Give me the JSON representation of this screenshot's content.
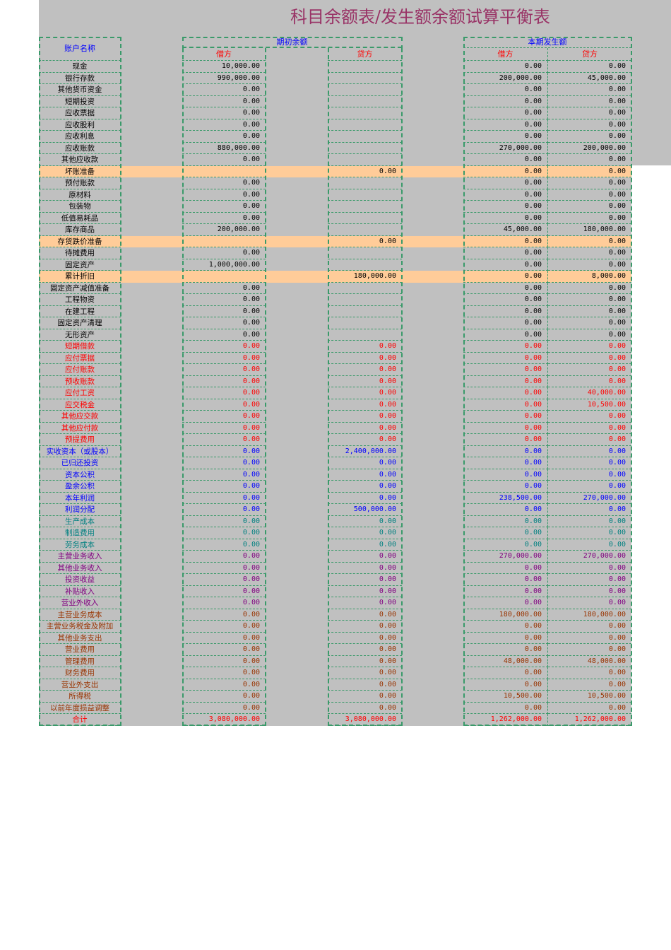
{
  "title": "科目余额表/发生额余额试算平衡表",
  "headers": {
    "account": "账户名称",
    "opening": "期初余额",
    "period": "本期发生额",
    "debit": "借方",
    "credit": "贷方"
  },
  "colors": {
    "black": "#000000",
    "red": "#ff0000",
    "blue": "#0000ff",
    "teal": "#008080",
    "purple": "#800080",
    "brown": "#993300",
    "highlight": "#ffcc99",
    "border": "#3a9a6a",
    "title": "#993366"
  },
  "rows": [
    {
      "name": "现金",
      "c": "black",
      "v": [
        "10,000.00",
        "",
        "0.00",
        "0.00"
      ]
    },
    {
      "name": "银行存款",
      "c": "black",
      "v": [
        "990,000.00",
        "",
        "200,000.00",
        "45,000.00"
      ]
    },
    {
      "name": "其他货币资金",
      "c": "black",
      "v": [
        "0.00",
        "",
        "0.00",
        "0.00"
      ]
    },
    {
      "name": "短期投资",
      "c": "black",
      "v": [
        "0.00",
        "",
        "0.00",
        "0.00"
      ]
    },
    {
      "name": "应收票据",
      "c": "black",
      "v": [
        "0.00",
        "",
        "0.00",
        "0.00"
      ]
    },
    {
      "name": "应收股利",
      "c": "black",
      "v": [
        "0.00",
        "",
        "0.00",
        "0.00"
      ]
    },
    {
      "name": "应收利息",
      "c": "black",
      "v": [
        "0.00",
        "",
        "0.00",
        "0.00"
      ]
    },
    {
      "name": "应收账款",
      "c": "black",
      "v": [
        "880,000.00",
        "",
        "270,000.00",
        "200,000.00"
      ]
    },
    {
      "name": "其他应收款",
      "c": "black",
      "v": [
        "0.00",
        "",
        "0.00",
        "0.00"
      ]
    },
    {
      "name": "坏账准备",
      "c": "black",
      "hl": true,
      "v": [
        "",
        "0.00",
        "0.00",
        "0.00"
      ]
    },
    {
      "name": "预付账款",
      "c": "black",
      "v": [
        "0.00",
        "",
        "0.00",
        "0.00"
      ]
    },
    {
      "name": "原材料",
      "c": "black",
      "v": [
        "0.00",
        "",
        "0.00",
        "0.00"
      ]
    },
    {
      "name": "包装物",
      "c": "black",
      "v": [
        "0.00",
        "",
        "0.00",
        "0.00"
      ]
    },
    {
      "name": "低值易耗品",
      "c": "black",
      "v": [
        "0.00",
        "",
        "0.00",
        "0.00"
      ]
    },
    {
      "name": "库存商品",
      "c": "black",
      "v": [
        "200,000.00",
        "",
        "45,000.00",
        "180,000.00"
      ]
    },
    {
      "name": "存货跌价准备",
      "c": "black",
      "hl": true,
      "v": [
        "",
        "0.00",
        "0.00",
        "0.00"
      ]
    },
    {
      "name": "待摊费用",
      "c": "black",
      "v": [
        "0.00",
        "",
        "0.00",
        "0.00"
      ]
    },
    {
      "name": "固定资产",
      "c": "black",
      "v": [
        "1,000,000.00",
        "",
        "0.00",
        "0.00"
      ]
    },
    {
      "name": "累计折旧",
      "c": "black",
      "hl": true,
      "v": [
        "",
        "180,000.00",
        "0.00",
        "8,000.00"
      ]
    },
    {
      "name": "固定资产减值准备",
      "c": "black",
      "v": [
        "0.00",
        "",
        "0.00",
        "0.00"
      ]
    },
    {
      "name": "工程物资",
      "c": "black",
      "v": [
        "0.00",
        "",
        "0.00",
        "0.00"
      ]
    },
    {
      "name": "在建工程",
      "c": "black",
      "v": [
        "0.00",
        "",
        "0.00",
        "0.00"
      ]
    },
    {
      "name": "固定资产清理",
      "c": "black",
      "v": [
        "0.00",
        "",
        "0.00",
        "0.00"
      ]
    },
    {
      "name": "无形资产",
      "c": "black",
      "v": [
        "0.00",
        "",
        "0.00",
        "0.00"
      ]
    },
    {
      "name": "短期借款",
      "c": "red",
      "v": [
        "0.00",
        "0.00",
        "0.00",
        "0.00"
      ]
    },
    {
      "name": "应付票据",
      "c": "red",
      "v": [
        "0.00",
        "0.00",
        "0.00",
        "0.00"
      ]
    },
    {
      "name": "应付账款",
      "c": "red",
      "v": [
        "0.00",
        "0.00",
        "0.00",
        "0.00"
      ]
    },
    {
      "name": "预收账款",
      "c": "red",
      "v": [
        "0.00",
        "0.00",
        "0.00",
        "0.00"
      ]
    },
    {
      "name": "应付工资",
      "c": "red",
      "v": [
        "0.00",
        "0.00",
        "0.00",
        "40,000.00"
      ]
    },
    {
      "name": "应交税金",
      "c": "red",
      "v": [
        "0.00",
        "0.00",
        "0.00",
        "10,500.00"
      ]
    },
    {
      "name": "其他应交款",
      "c": "red",
      "v": [
        "0.00",
        "0.00",
        "0.00",
        "0.00"
      ]
    },
    {
      "name": "其他应付款",
      "c": "red",
      "v": [
        "0.00",
        "0.00",
        "0.00",
        "0.00"
      ]
    },
    {
      "name": "预提费用",
      "c": "red",
      "v": [
        "0.00",
        "0.00",
        "0.00",
        "0.00"
      ]
    },
    {
      "name": "实收资本（或股本）",
      "c": "blue",
      "v": [
        "0.00",
        "2,400,000.00",
        "0.00",
        "0.00"
      ]
    },
    {
      "name": "已归还投资",
      "c": "blue",
      "v": [
        "0.00",
        "0.00",
        "0.00",
        "0.00"
      ]
    },
    {
      "name": "资本公积",
      "c": "blue",
      "v": [
        "0.00",
        "0.00",
        "0.00",
        "0.00"
      ]
    },
    {
      "name": "盈余公积",
      "c": "blue",
      "v": [
        "0.00",
        "0.00",
        "0.00",
        "0.00"
      ]
    },
    {
      "name": "本年利润",
      "c": "blue",
      "v": [
        "0.00",
        "0.00",
        "238,500.00",
        "270,000.00"
      ]
    },
    {
      "name": "利润分配",
      "c": "blue",
      "v": [
        "0.00",
        "500,000.00",
        "0.00",
        "0.00"
      ]
    },
    {
      "name": "生产成本",
      "c": "teal",
      "v": [
        "0.00",
        "0.00",
        "0.00",
        "0.00"
      ]
    },
    {
      "name": "制造费用",
      "c": "teal",
      "v": [
        "0.00",
        "0.00",
        "0.00",
        "0.00"
      ]
    },
    {
      "name": "劳务成本",
      "c": "teal",
      "v": [
        "0.00",
        "0.00",
        "0.00",
        "0.00"
      ]
    },
    {
      "name": "主营业务收入",
      "c": "purple",
      "v": [
        "0.00",
        "0.00",
        "270,000.00",
        "270,000.00"
      ]
    },
    {
      "name": "其他业务收入",
      "c": "purple",
      "v": [
        "0.00",
        "0.00",
        "0.00",
        "0.00"
      ]
    },
    {
      "name": "投资收益",
      "c": "purple",
      "v": [
        "0.00",
        "0.00",
        "0.00",
        "0.00"
      ]
    },
    {
      "name": "补贴收入",
      "c": "purple",
      "v": [
        "0.00",
        "0.00",
        "0.00",
        "0.00"
      ]
    },
    {
      "name": "营业外收入",
      "c": "purple",
      "v": [
        "0.00",
        "0.00",
        "0.00",
        "0.00"
      ]
    },
    {
      "name": "主营业务成本",
      "c": "brown",
      "v": [
        "0.00",
        "0.00",
        "180,000.00",
        "180,000.00"
      ]
    },
    {
      "name": "主营业务税金及附加",
      "c": "brown",
      "v": [
        "0.00",
        "0.00",
        "0.00",
        "0.00"
      ]
    },
    {
      "name": "其他业务支出",
      "c": "brown",
      "v": [
        "0.00",
        "0.00",
        "0.00",
        "0.00"
      ]
    },
    {
      "name": "营业费用",
      "c": "brown",
      "v": [
        "0.00",
        "0.00",
        "0.00",
        "0.00"
      ]
    },
    {
      "name": "管理费用",
      "c": "brown",
      "v": [
        "0.00",
        "0.00",
        "48,000.00",
        "48,000.00"
      ]
    },
    {
      "name": "财务费用",
      "c": "brown",
      "v": [
        "0.00",
        "0.00",
        "0.00",
        "0.00"
      ]
    },
    {
      "name": "营业外支出",
      "c": "brown",
      "v": [
        "0.00",
        "0.00",
        "0.00",
        "0.00"
      ]
    },
    {
      "name": "所得税",
      "c": "brown",
      "v": [
        "0.00",
        "0.00",
        "10,500.00",
        "10,500.00"
      ]
    },
    {
      "name": "以前年度损益调整",
      "c": "brown",
      "v": [
        "0.00",
        "0.00",
        "0.00",
        "0.00"
      ]
    },
    {
      "name": "合计",
      "c": "red",
      "v": [
        "3,080,000.00",
        "3,080,000.00",
        "1,262,000.00",
        "1,262,000.00"
      ]
    }
  ]
}
